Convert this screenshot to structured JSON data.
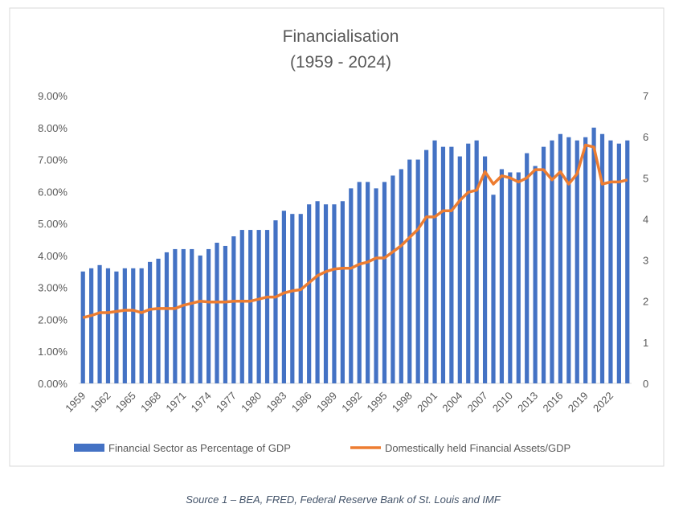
{
  "chart_data": {
    "type": "bar-line",
    "title": "Financialisation",
    "subtitle": "(1959 - 2024)",
    "caption": "Source 1 – BEA, FRED, Federal Reserve Bank of St. Louis and IMF",
    "categories": [
      "1959",
      null,
      null,
      "1962",
      null,
      null,
      "1965",
      null,
      null,
      "1968",
      null,
      null,
      "1971",
      null,
      null,
      "1974",
      null,
      null,
      "1977",
      null,
      null,
      "1980",
      null,
      null,
      "1983",
      null,
      null,
      "1986",
      null,
      null,
      "1989",
      null,
      null,
      "1992",
      null,
      null,
      "1995",
      null,
      null,
      "1998",
      null,
      null,
      "2001",
      null,
      null,
      "2004",
      null,
      null,
      "2007",
      null,
      null,
      "2010",
      null,
      null,
      "2013",
      null,
      null,
      "2016",
      null,
      null,
      "2019",
      null,
      null,
      "2022",
      null,
      null
    ],
    "series": [
      {
        "name": "Financial Sector as Percentage of GDP",
        "type": "bar",
        "color": "#4472c4",
        "values": [
          3.5,
          3.6,
          3.7,
          3.6,
          3.5,
          3.6,
          3.6,
          3.6,
          3.8,
          3.9,
          4.1,
          4.2,
          4.2,
          4.2,
          4.0,
          4.2,
          4.4,
          4.3,
          4.6,
          4.8,
          4.8,
          4.8,
          4.8,
          5.1,
          5.4,
          5.3,
          5.3,
          5.6,
          5.7,
          5.6,
          5.6,
          5.7,
          6.1,
          6.3,
          6.3,
          6.1,
          6.3,
          6.5,
          6.7,
          7.0,
          7.0,
          7.3,
          7.6,
          7.4,
          7.4,
          7.1,
          7.5,
          7.6,
          7.1,
          5.9,
          6.7,
          6.6,
          6.6,
          7.2,
          6.8,
          7.4,
          7.6,
          7.8,
          7.7,
          7.6,
          7.7,
          8.0,
          7.8,
          7.6,
          7.5,
          7.6
        ]
      },
      {
        "name": "Domestically held Financial Assets/GDP",
        "type": "line",
        "axis": "y2",
        "color": "#ed7d31",
        "values": [
          1.6,
          1.65,
          1.72,
          1.72,
          1.75,
          1.78,
          1.78,
          1.72,
          1.8,
          1.82,
          1.82,
          1.82,
          1.9,
          1.95,
          2.0,
          1.98,
          1.98,
          1.98,
          2.0,
          2.0,
          2.0,
          2.05,
          2.1,
          2.1,
          2.2,
          2.25,
          2.28,
          2.45,
          2.62,
          2.72,
          2.78,
          2.8,
          2.8,
          2.9,
          2.95,
          3.05,
          3.05,
          3.2,
          3.35,
          3.55,
          3.75,
          4.05,
          4.05,
          4.2,
          4.2,
          4.45,
          4.65,
          4.7,
          5.15,
          4.85,
          5.05,
          5.0,
          4.9,
          5.0,
          5.2,
          5.2,
          4.95,
          5.15,
          4.85,
          5.1,
          5.8,
          5.75,
          4.85,
          4.9,
          4.9,
          4.95
        ]
      }
    ],
    "ylim": [
      0,
      9
    ],
    "yticks": [
      {
        "value": 0,
        "label": "0.00%"
      },
      {
        "value": 1,
        "label": "1.00%"
      },
      {
        "value": 2,
        "label": "2.00%"
      },
      {
        "value": 3,
        "label": "3.00%"
      },
      {
        "value": 4,
        "label": "4.00%"
      },
      {
        "value": 5,
        "label": "5.00%"
      },
      {
        "value": 6,
        "label": "6.00%"
      },
      {
        "value": 7,
        "label": "7.00%"
      },
      {
        "value": 8,
        "label": "8.00%"
      },
      {
        "value": 9,
        "label": "9.00%"
      }
    ],
    "y2lim": [
      0,
      7
    ],
    "y2ticks": [
      0,
      1,
      2,
      3,
      4,
      5,
      6,
      7
    ],
    "legend": "bottom"
  }
}
